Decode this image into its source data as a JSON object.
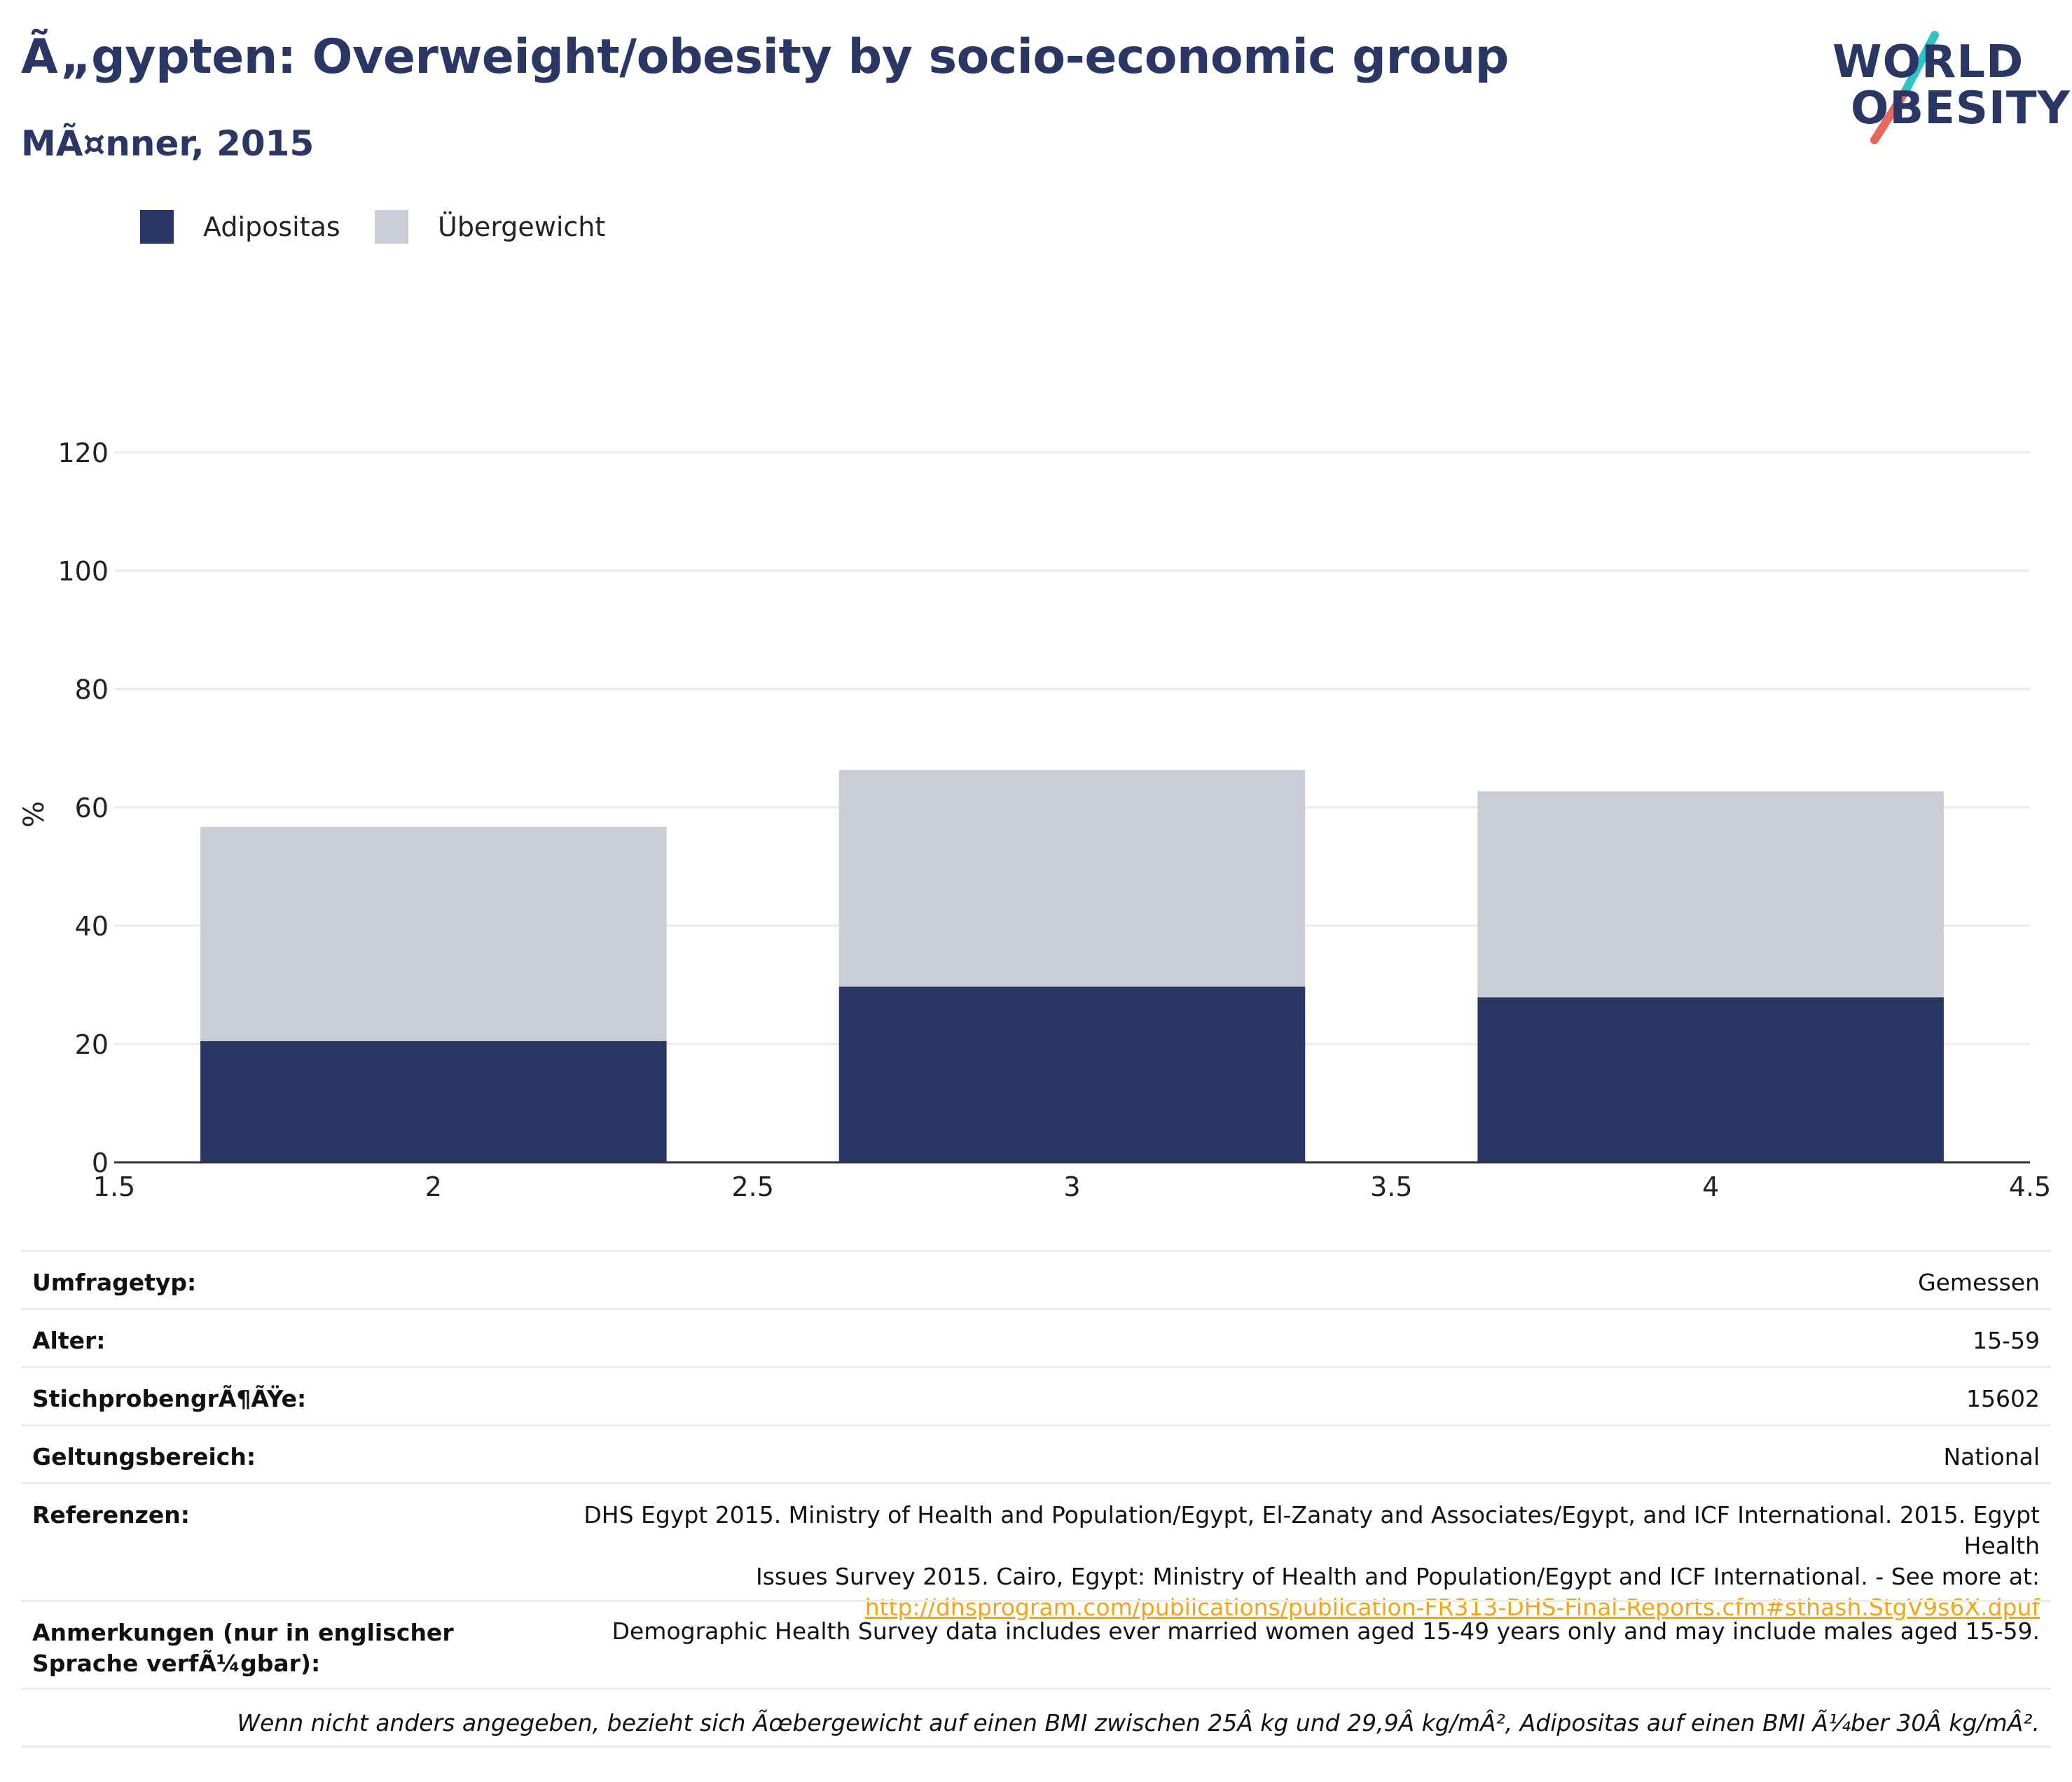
{
  "header": {
    "title": "Ã„gypten: Overweight/obesity by socio-economic group",
    "subtitle": "MÃ¤nner, 2015"
  },
  "logo": {
    "line1": "WORLD",
    "line2": "OBESITY"
  },
  "colors": {
    "title": "#2a3663",
    "obesity": "#2a3663",
    "overweight": "#cacdd8",
    "link": "#f2a516",
    "logo_accent_teal": "#2ec4c4",
    "logo_accent_red": "#e8685a"
  },
  "legend": {
    "items": [
      {
        "label": "Adipositas",
        "color": "#2a3663"
      },
      {
        "label": "Übergewicht",
        "color": "#cacdd8"
      }
    ]
  },
  "chart_data": {
    "type": "bar",
    "stacked": true,
    "ylabel": "%",
    "xlabel": "",
    "xlim": [
      1.5,
      4.5
    ],
    "ylim": [
      0,
      120
    ],
    "x_ticks": [
      "1.5",
      "2",
      "2.5",
      "3",
      "3.5",
      "4",
      "4.5"
    ],
    "y_ticks": [
      "0",
      "20",
      "40",
      "60",
      "80",
      "100",
      "120"
    ],
    "x": [
      2,
      3,
      4
    ],
    "bar_width": 0.73,
    "grid": true,
    "legend_position": "top-left",
    "series": [
      {
        "name": "Adipositas",
        "values": [
          20.5,
          29.7,
          27.9
        ]
      },
      {
        "name": "Übergewicht",
        "values": [
          36.2,
          36.6,
          34.8
        ]
      }
    ]
  },
  "info": {
    "rows": [
      {
        "label": "Umfragetyp:",
        "value": "Gemessen"
      },
      {
        "label": "Alter:",
        "value": "15-59"
      },
      {
        "label": "StichprobengrÃ¶ÃŸe:",
        "value": "15602"
      },
      {
        "label": "Geltungsbereich:",
        "value": "National"
      }
    ],
    "references": {
      "label": "Referenzen:",
      "line1": "DHS Egypt 2015. Ministry of Health and Population/Egypt, El-Zanaty and Associates/Egypt, and ICF International. 2015. Egypt Health",
      "line2": "Issues Survey 2015. Cairo, Egypt: Ministry of Health and Population/Egypt and ICF International. - See more at:",
      "link": "http://dhsprogram.com/publications/publication-FR313-DHS-Final-Reports.cfm#sthash.StgV9s6X.dpuf"
    },
    "notes": {
      "label": "Anmerkungen (nur in englischer Sprache verfÃ¼gbar):",
      "value": "Demographic Health Survey data includes ever married women aged 15-49 years only and may include males aged 15-59."
    },
    "footnote": "Wenn nicht anders angegeben, bezieht sich Ãœbergewicht auf einen BMI zwischen 25Â kg und 29,9Â kg/mÂ², Adipositas auf einen BMI Ã¼ber 30Â kg/mÂ²."
  }
}
